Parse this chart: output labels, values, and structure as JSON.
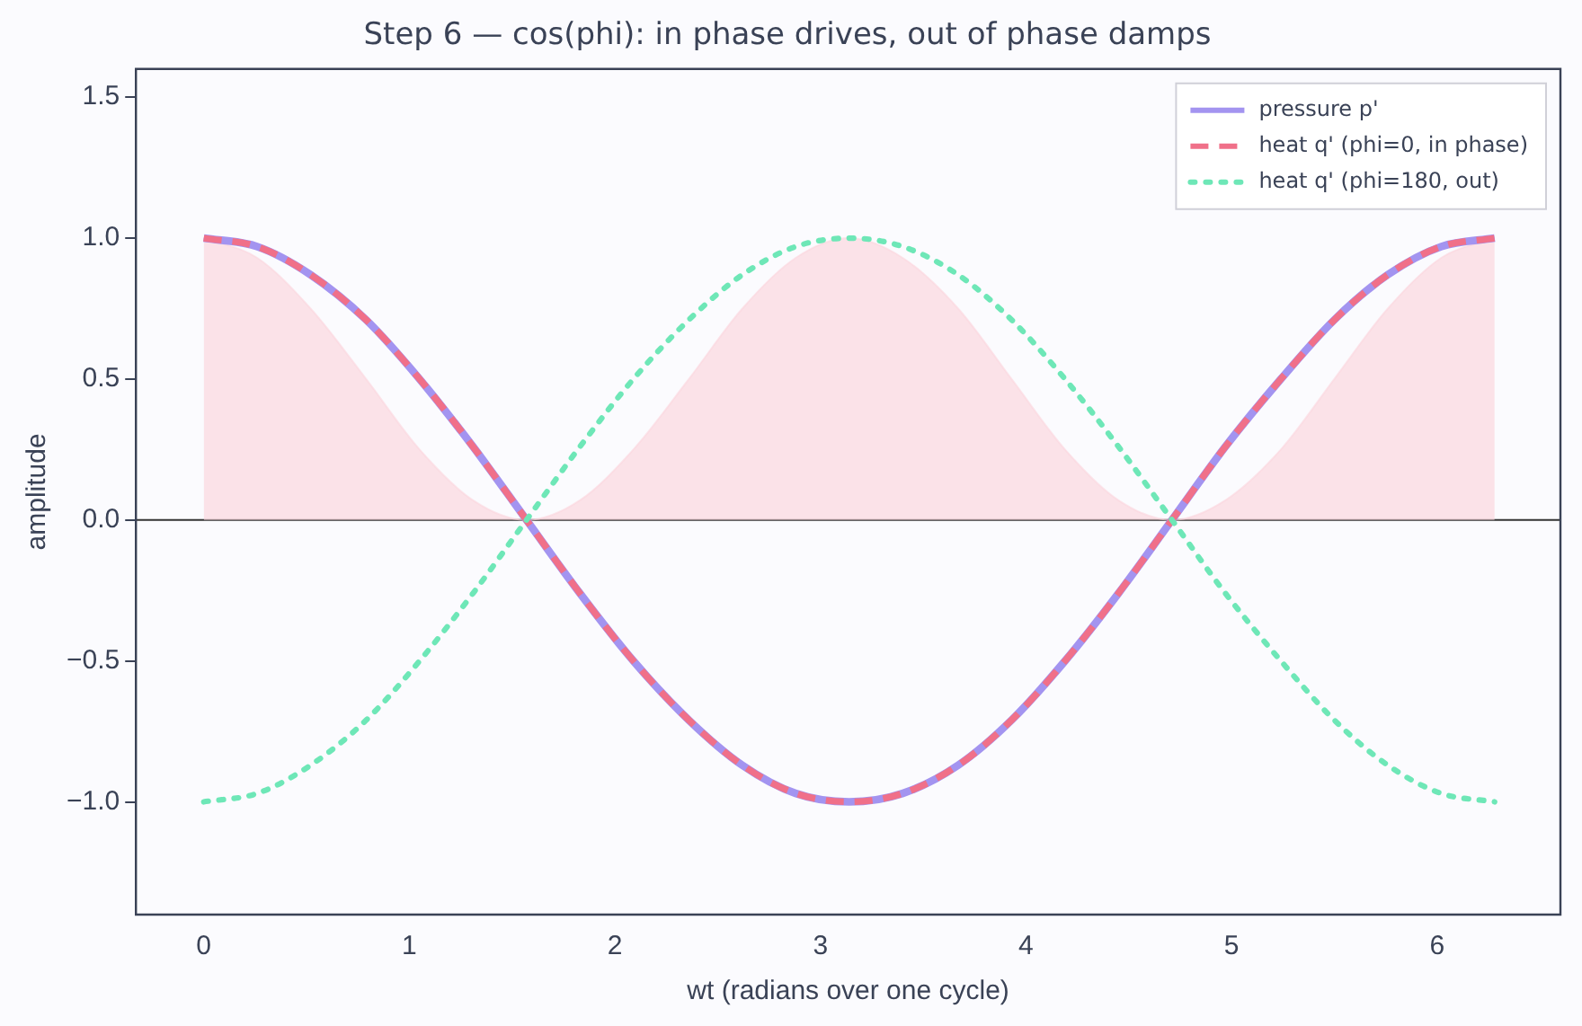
{
  "chart_data": {
    "type": "line",
    "title": "Step 6 — cos(phi): in phase drives, out of phase damps",
    "xlabel": "wt (radians over one cycle)",
    "ylabel": "amplitude",
    "x": [
      0,
      0.26,
      0.52,
      0.79,
      1.05,
      1.31,
      1.57,
      1.83,
      2.09,
      2.36,
      2.62,
      2.88,
      3.14,
      3.4,
      3.67,
      3.93,
      4.19,
      4.45,
      4.71,
      4.97,
      5.24,
      5.5,
      5.76,
      6.02,
      6.28
    ],
    "series": [
      {
        "type": "area",
        "color": "#fbd5dd",
        "values": [
          1,
          0.93,
          0.75,
          0.5,
          0.25,
          0.07,
          0,
          0.07,
          0.25,
          0.5,
          0.75,
          0.93,
          1,
          0.93,
          0.75,
          0.5,
          0.25,
          0.07,
          0,
          0.07,
          0.25,
          0.5,
          0.75,
          0.93,
          1
        ]
      },
      {
        "name": "pressure p'",
        "color": "#a394f0",
        "line_style": "solid",
        "values": [
          1,
          0.97,
          0.87,
          0.71,
          0.5,
          0.26,
          0,
          -0.26,
          -0.5,
          -0.71,
          -0.87,
          -0.97,
          -1,
          -0.97,
          -0.87,
          -0.71,
          -0.5,
          -0.26,
          0,
          0.26,
          0.5,
          0.71,
          0.87,
          0.97,
          1
        ]
      },
      {
        "name": "heat q' (phi=0, in phase)",
        "color": "#f07089",
        "line_style": "dashed",
        "values": [
          1,
          0.97,
          0.87,
          0.71,
          0.5,
          0.26,
          0,
          -0.26,
          -0.5,
          -0.71,
          -0.87,
          -0.97,
          -1,
          -0.97,
          -0.87,
          -0.71,
          -0.5,
          -0.26,
          0,
          0.26,
          0.5,
          0.71,
          0.87,
          0.97,
          1
        ]
      },
      {
        "name": "heat q' (phi=180, out)",
        "color": "#6ee7b7",
        "line_style": "dotted",
        "values": [
          -1,
          -0.97,
          -0.87,
          -0.71,
          -0.5,
          -0.26,
          0,
          0.26,
          0.5,
          0.71,
          0.87,
          0.97,
          1,
          0.97,
          0.87,
          0.71,
          0.5,
          0.26,
          0,
          -0.26,
          -0.5,
          -0.71,
          -0.87,
          -0.97,
          -1
        ]
      }
    ],
    "xlim": [
      -0.33,
      6.6
    ],
    "xticks": [
      0,
      1,
      2,
      3,
      4,
      5,
      6
    ],
    "ylim": [
      -1.4,
      1.6
    ],
    "yticks": [
      {
        "value": -1,
        "label": "−1.0"
      },
      {
        "value": -0.5,
        "label": "−0.5"
      },
      {
        "value": 0,
        "label": "0.0"
      },
      {
        "value": 0.5,
        "label": "0.5"
      },
      {
        "value": 1,
        "label": "1.0"
      },
      {
        "value": 1.5,
        "label": "1.5"
      }
    ],
    "ref_lines": [
      {
        "axis": "y",
        "value": 0,
        "color": "#333333"
      }
    ],
    "grid": false,
    "legend": "top right",
    "marker": "none"
  }
}
